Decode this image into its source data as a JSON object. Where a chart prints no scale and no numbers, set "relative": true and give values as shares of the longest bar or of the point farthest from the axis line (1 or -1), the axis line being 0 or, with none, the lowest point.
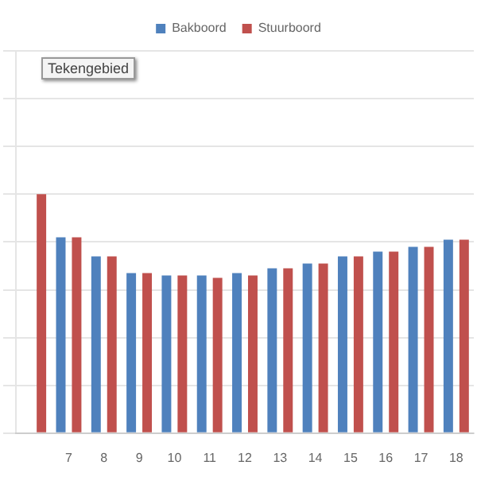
{
  "chart_data": {
    "type": "bar",
    "relative": true,
    "categories": [
      null,
      "7",
      "8",
      "9",
      "10",
      "11",
      "12",
      "13",
      "14",
      "15",
      "16",
      "17",
      "18"
    ],
    "series": [
      {
        "name": "Bakboord",
        "color": "#4f81bd",
        "values": [
          null,
          0.82,
          0.74,
          0.67,
          0.66,
          0.66,
          0.67,
          0.69,
          0.71,
          0.74,
          0.76,
          0.78,
          0.81
        ]
      },
      {
        "name": "Stuurboord",
        "color": "#c0504d",
        "values": [
          1.0,
          0.82,
          0.74,
          0.67,
          0.66,
          0.65,
          0.66,
          0.69,
          0.71,
          0.74,
          0.76,
          0.78,
          0.81
        ]
      }
    ],
    "annotations": [
      "Tekengebied"
    ],
    "grid": "y",
    "legend": "top"
  }
}
